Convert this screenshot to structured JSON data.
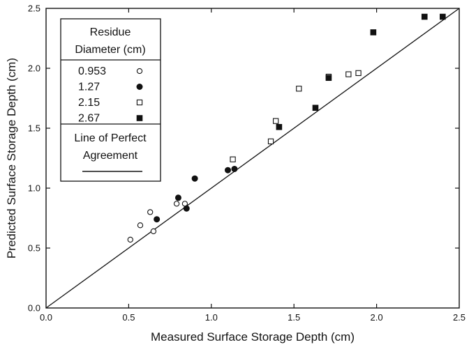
{
  "chart_data": {
    "type": "scatter",
    "title": "",
    "xlabel": "Measured Surface Storage Depth (cm)",
    "ylabel": "Predicted Surface Storage Depth (cm)",
    "xlim": [
      0.0,
      2.5
    ],
    "ylim": [
      0.0,
      2.5
    ],
    "xticks": [
      "0.0",
      "0.5",
      "1.0",
      "1.5",
      "2.0",
      "2.5"
    ],
    "yticks": [
      "0.0",
      "0.5",
      "1.0",
      "1.5",
      "2.0",
      "2.5"
    ],
    "grid": false,
    "legend_placement": "top-left",
    "legend_title_line1": "Residue",
    "legend_title_line2": "Diameter (cm)",
    "line_label_line1": "Line of Perfect",
    "line_label_line2": "Agreement",
    "reference_line": {
      "type": "y=x",
      "from": [
        0.0,
        0.0
      ],
      "to": [
        2.5,
        2.5
      ]
    },
    "series": [
      {
        "name": "0.953",
        "marker": "open-circle",
        "points": [
          [
            0.51,
            0.57
          ],
          [
            0.57,
            0.69
          ],
          [
            0.63,
            0.8
          ],
          [
            0.65,
            0.64
          ],
          [
            0.79,
            0.87
          ],
          [
            0.84,
            0.87
          ]
        ]
      },
      {
        "name": "1.27",
        "marker": "filled-circle",
        "points": [
          [
            0.67,
            0.74
          ],
          [
            0.8,
            0.92
          ],
          [
            0.85,
            0.83
          ],
          [
            0.9,
            1.08
          ],
          [
            1.1,
            1.15
          ],
          [
            1.14,
            1.16
          ]
        ]
      },
      {
        "name": "2.15",
        "marker": "open-square",
        "points": [
          [
            1.13,
            1.24
          ],
          [
            1.36,
            1.39
          ],
          [
            1.39,
            1.56
          ],
          [
            1.53,
            1.83
          ],
          [
            1.71,
            1.93
          ],
          [
            1.83,
            1.95
          ],
          [
            1.89,
            1.96
          ]
        ]
      },
      {
        "name": "2.67",
        "marker": "filled-square",
        "points": [
          [
            1.41,
            1.51
          ],
          [
            1.63,
            1.67
          ],
          [
            1.71,
            1.92
          ],
          [
            1.98,
            2.3
          ],
          [
            2.29,
            2.43
          ],
          [
            2.4,
            2.43
          ]
        ]
      }
    ]
  }
}
